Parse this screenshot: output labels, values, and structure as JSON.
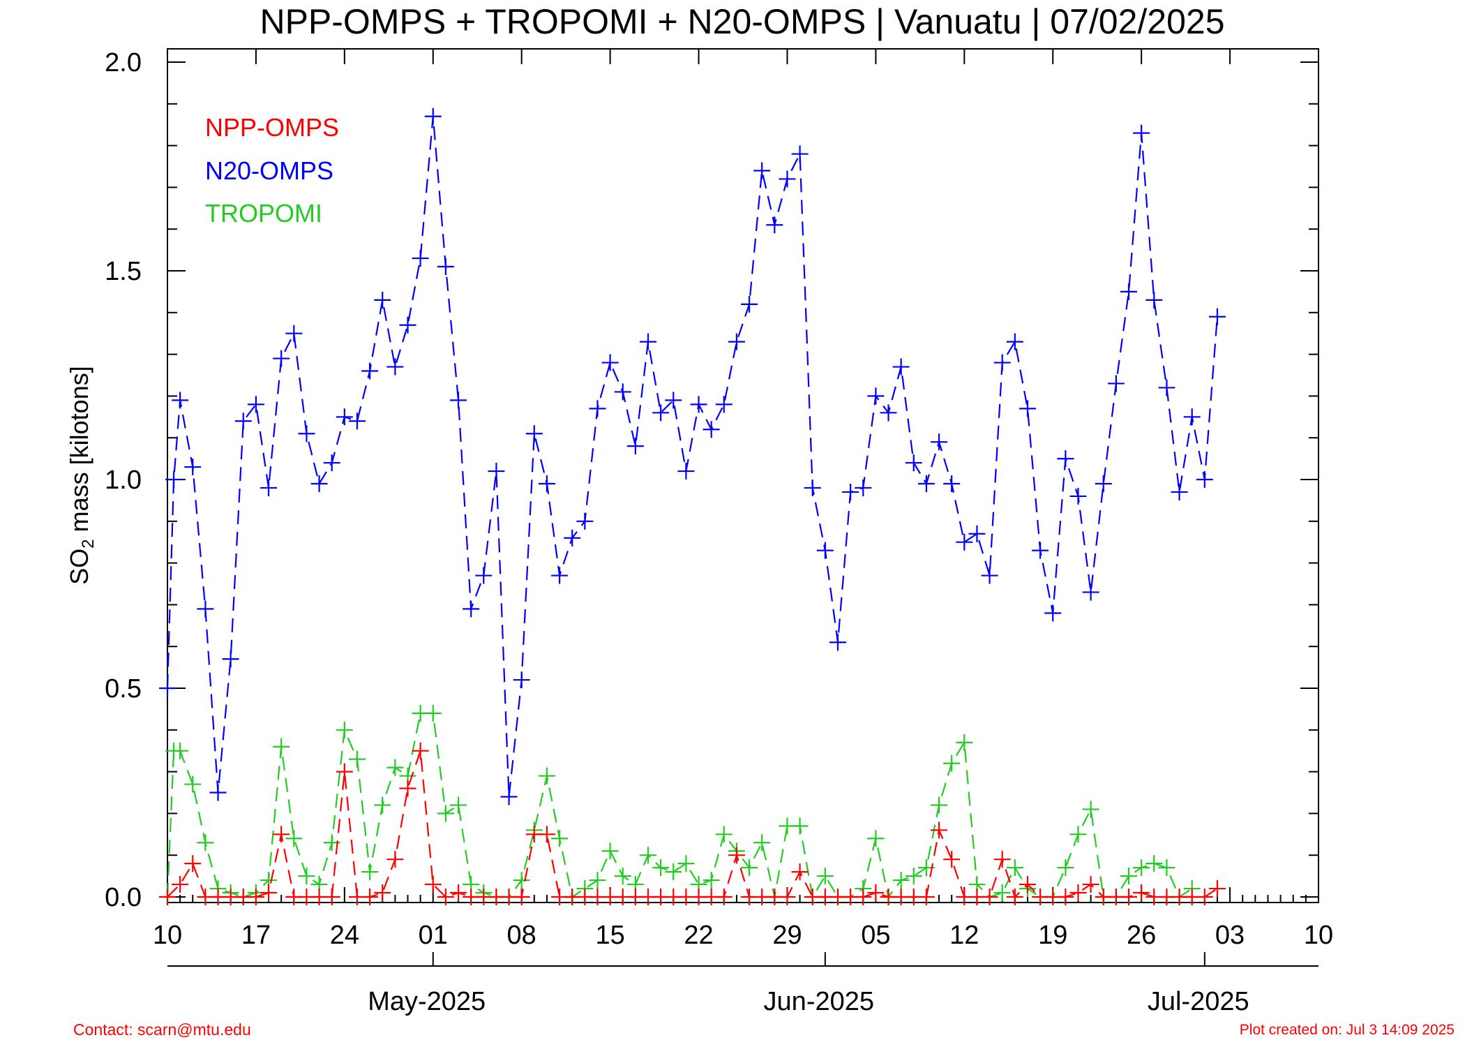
{
  "chart_data": {
    "type": "line",
    "title": "NPP-OMPS + TROPOMI + N20-OMPS | Vanuatu | 07/02/2025",
    "ylabel_main": "SO",
    "ylabel_sub": "2",
    "ylabel_rest": " mass [kilotons]",
    "ylim": [
      0,
      2.0
    ],
    "yticks": [
      "0.0",
      "0.5",
      "1.0",
      "1.5",
      "2.0"
    ],
    "xlim": [
      0,
      91
    ],
    "x_tick_labels": [
      {
        "day": 0,
        "label": "10"
      },
      {
        "day": 7,
        "label": "17"
      },
      {
        "day": 14,
        "label": "24"
      },
      {
        "day": 21,
        "label": "01"
      },
      {
        "day": 28,
        "label": "08"
      },
      {
        "day": 35,
        "label": "15"
      },
      {
        "day": 42,
        "label": "22"
      },
      {
        "day": 49,
        "label": "29"
      },
      {
        "day": 56,
        "label": "05"
      },
      {
        "day": 63,
        "label": "12"
      },
      {
        "day": 70,
        "label": "19"
      },
      {
        "day": 77,
        "label": "26"
      },
      {
        "day": 84,
        "label": "03"
      },
      {
        "day": 91,
        "label": "10"
      }
    ],
    "month_labels": [
      {
        "day": 20.5,
        "label": "May-2025"
      },
      {
        "day": 51.5,
        "label": "Jun-2025"
      },
      {
        "day": 81.5,
        "label": "Jul-2025"
      }
    ],
    "legend": [
      {
        "name": "NPP-OMPS",
        "color": "#ff0000"
      },
      {
        "name": "N20-OMPS",
        "color": "#0000ff"
      },
      {
        "name": "TROPOMI",
        "color": "#22cc22"
      }
    ],
    "series": [
      {
        "name": "N20-OMPS",
        "color": "#0000ff",
        "points": [
          [
            0,
            0.5
          ],
          [
            0.5,
            1.0
          ],
          [
            1,
            1.19
          ],
          [
            2,
            1.03
          ],
          [
            3,
            0.69
          ],
          [
            4,
            0.25
          ],
          [
            5,
            0.57
          ],
          [
            6,
            1.14
          ],
          [
            7,
            1.18
          ],
          [
            8,
            0.98
          ],
          [
            9,
            1.29
          ],
          [
            10,
            1.35
          ],
          [
            11,
            1.11
          ],
          [
            12,
            0.99
          ],
          [
            13,
            1.04
          ],
          [
            14,
            1.15
          ],
          [
            15,
            1.14
          ],
          [
            16,
            1.26
          ],
          [
            17,
            1.43
          ],
          [
            18,
            1.27
          ],
          [
            19,
            1.37
          ],
          [
            20,
            1.53
          ],
          [
            21,
            1.87
          ],
          [
            22,
            1.51
          ],
          [
            23,
            1.19
          ],
          [
            24,
            0.69
          ],
          [
            25,
            0.77
          ],
          [
            26,
            1.02
          ],
          [
            27,
            0.24
          ],
          [
            28,
            0.52
          ],
          [
            29,
            1.11
          ],
          [
            30,
            0.99
          ],
          [
            31,
            0.77
          ],
          [
            32,
            0.86
          ],
          [
            33,
            0.9
          ],
          [
            34,
            1.17
          ],
          [
            35,
            1.28
          ],
          [
            36,
            1.21
          ],
          [
            37,
            1.08
          ],
          [
            38,
            1.33
          ],
          [
            39,
            1.16
          ],
          [
            40,
            1.19
          ],
          [
            41,
            1.02
          ],
          [
            42,
            1.18
          ],
          [
            43,
            1.12
          ],
          [
            44,
            1.18
          ],
          [
            45,
            1.33
          ],
          [
            46,
            1.42
          ],
          [
            47,
            1.74
          ],
          [
            48,
            1.61
          ],
          [
            49,
            1.72
          ],
          [
            50,
            1.78
          ],
          [
            51,
            0.98
          ],
          [
            52,
            0.83
          ],
          [
            53,
            0.61
          ],
          [
            54,
            0.97
          ],
          [
            55,
            0.98
          ],
          [
            56,
            1.2
          ],
          [
            57,
            1.16
          ],
          [
            58,
            1.27
          ],
          [
            59,
            1.04
          ],
          [
            60,
            0.99
          ],
          [
            61,
            1.09
          ],
          [
            62,
            0.99
          ],
          [
            63,
            0.85
          ],
          [
            64,
            0.87
          ],
          [
            65,
            0.77
          ],
          [
            66,
            1.28
          ],
          [
            67,
            1.33
          ],
          [
            68,
            1.17
          ],
          [
            69,
            0.83
          ],
          [
            70,
            0.68
          ],
          [
            71,
            1.05
          ],
          [
            72,
            0.96
          ],
          [
            73,
            0.73
          ],
          [
            74,
            0.99
          ],
          [
            75,
            1.23
          ],
          [
            76,
            1.45
          ],
          [
            77,
            1.83
          ],
          [
            78,
            1.43
          ],
          [
            79,
            1.22
          ],
          [
            80,
            0.97
          ],
          [
            81,
            1.15
          ],
          [
            82,
            1.0
          ],
          [
            83,
            1.39
          ]
        ]
      },
      {
        "name": "TROPOMI",
        "color": "#22cc22",
        "points": [
          [
            0,
            0.0
          ],
          [
            0.5,
            0.35
          ],
          [
            1,
            0.35
          ],
          [
            2,
            0.27
          ],
          [
            3,
            0.13
          ],
          [
            4,
            0.02
          ],
          [
            5,
            0.01
          ],
          [
            6,
            0.0
          ],
          [
            7,
            0.01
          ],
          [
            8,
            0.04
          ],
          [
            9,
            0.36
          ],
          [
            10,
            0.14
          ],
          [
            11,
            0.05
          ],
          [
            12,
            0.03
          ],
          [
            13,
            0.13
          ],
          [
            14,
            0.4
          ],
          [
            15,
            0.33
          ],
          [
            16,
            0.06
          ],
          [
            17,
            0.22
          ],
          [
            18,
            0.31
          ],
          [
            19,
            0.29
          ],
          [
            20,
            0.44
          ],
          [
            21,
            0.44
          ],
          [
            22,
            0.2
          ],
          [
            23,
            0.22
          ],
          [
            24,
            0.03
          ],
          [
            25,
            0.01
          ],
          [
            26,
            0.0
          ],
          [
            27,
            0.0
          ],
          [
            28,
            0.04
          ],
          [
            29,
            0.16
          ],
          [
            30,
            0.29
          ],
          [
            31,
            0.14
          ],
          [
            32,
            0.0
          ],
          [
            33,
            0.02
          ],
          [
            34,
            0.04
          ],
          [
            35,
            0.11
          ],
          [
            36,
            0.05
          ],
          [
            37,
            0.03
          ],
          [
            38,
            0.1
          ],
          [
            39,
            0.07
          ],
          [
            40,
            0.06
          ],
          [
            41,
            0.08
          ],
          [
            42,
            0.03
          ],
          [
            43,
            0.04
          ],
          [
            44,
            0.15
          ],
          [
            45,
            0.11
          ],
          [
            46,
            0.07
          ],
          [
            47,
            0.13
          ],
          [
            48,
            0.0
          ],
          [
            49,
            0.17
          ],
          [
            50,
            0.17
          ],
          [
            51,
            0.0
          ],
          [
            52,
            0.05
          ],
          [
            53,
            0.0
          ],
          [
            54,
            0.0
          ],
          [
            55,
            0.02
          ],
          [
            56,
            0.14
          ],
          [
            57,
            0.0
          ],
          [
            58,
            0.04
          ],
          [
            59,
            0.05
          ],
          [
            60,
            0.07
          ],
          [
            61,
            0.22
          ],
          [
            62,
            0.32
          ],
          [
            63,
            0.37
          ],
          [
            64,
            0.03
          ],
          [
            65,
            0.0
          ],
          [
            66,
            0.01
          ],
          [
            67,
            0.07
          ],
          [
            68,
            0.02
          ],
          [
            69,
            0.0
          ],
          [
            70,
            0.0
          ],
          [
            71,
            0.07
          ],
          [
            72,
            0.15
          ],
          [
            73,
            0.21
          ],
          [
            74,
            0.0
          ],
          [
            75,
            0.0
          ],
          [
            76,
            0.05
          ],
          [
            77,
            0.07
          ],
          [
            78,
            0.08
          ],
          [
            79,
            0.07
          ],
          [
            80,
            0.0
          ],
          [
            81,
            0.02
          ]
        ]
      },
      {
        "name": "NPP-OMPS",
        "color": "#ff0000",
        "points": [
          [
            0,
            0.0
          ],
          [
            1,
            0.03
          ],
          [
            2,
            0.08
          ],
          [
            3,
            0.0
          ],
          [
            4,
            0.0
          ],
          [
            5,
            0.0
          ],
          [
            6,
            0.0
          ],
          [
            7,
            0.0
          ],
          [
            8,
            0.01
          ],
          [
            9,
            0.15
          ],
          [
            10,
            0.0
          ],
          [
            11,
            0.0
          ],
          [
            12,
            0.0
          ],
          [
            13,
            0.0
          ],
          [
            14,
            0.3
          ],
          [
            15,
            0.0
          ],
          [
            16,
            0.0
          ],
          [
            17,
            0.01
          ],
          [
            18,
            0.09
          ],
          [
            19,
            0.26
          ],
          [
            20,
            0.35
          ],
          [
            21,
            0.03
          ],
          [
            22,
            0.0
          ],
          [
            23,
            0.01
          ],
          [
            24,
            0.0
          ],
          [
            25,
            0.0
          ],
          [
            26,
            0.0
          ],
          [
            27,
            0.0
          ],
          [
            28,
            0.0
          ],
          [
            29,
            0.15
          ],
          [
            30,
            0.15
          ],
          [
            31,
            0.0
          ],
          [
            32,
            0.0
          ],
          [
            33,
            0.0
          ],
          [
            34,
            0.0
          ],
          [
            35,
            0.0
          ],
          [
            36,
            0.0
          ],
          [
            37,
            0.0
          ],
          [
            38,
            0.0
          ],
          [
            39,
            0.0
          ],
          [
            40,
            0.0
          ],
          [
            41,
            0.0
          ],
          [
            42,
            0.0
          ],
          [
            43,
            0.0
          ],
          [
            44,
            0.0
          ],
          [
            45,
            0.1
          ],
          [
            46,
            0.0
          ],
          [
            47,
            0.0
          ],
          [
            48,
            0.0
          ],
          [
            49,
            0.0
          ],
          [
            50,
            0.06
          ],
          [
            51,
            0.0
          ],
          [
            52,
            0.0
          ],
          [
            53,
            0.0
          ],
          [
            54,
            0.0
          ],
          [
            55,
            0.0
          ],
          [
            56,
            0.01
          ],
          [
            57,
            0.0
          ],
          [
            58,
            0.0
          ],
          [
            59,
            0.0
          ],
          [
            60,
            0.0
          ],
          [
            61,
            0.16
          ],
          [
            62,
            0.09
          ],
          [
            63,
            0.0
          ],
          [
            64,
            0.0
          ],
          [
            65,
            0.0
          ],
          [
            66,
            0.09
          ],
          [
            67,
            0.0
          ],
          [
            68,
            0.03
          ],
          [
            69,
            0.0
          ],
          [
            70,
            0.0
          ],
          [
            71,
            0.0
          ],
          [
            72,
            0.01
          ],
          [
            73,
            0.03
          ],
          [
            74,
            0.0
          ],
          [
            75,
            0.0
          ],
          [
            76,
            0.0
          ],
          [
            77,
            0.01
          ],
          [
            78,
            0.0
          ],
          [
            79,
            0.0
          ],
          [
            80,
            0.0
          ],
          [
            81,
            0.0
          ],
          [
            82,
            0.0
          ],
          [
            83,
            0.02
          ]
        ]
      }
    ]
  },
  "footer": {
    "contact": "Contact: scarn@mtu.edu",
    "created": "Plot created on: Jul  3 14:09 2025"
  }
}
